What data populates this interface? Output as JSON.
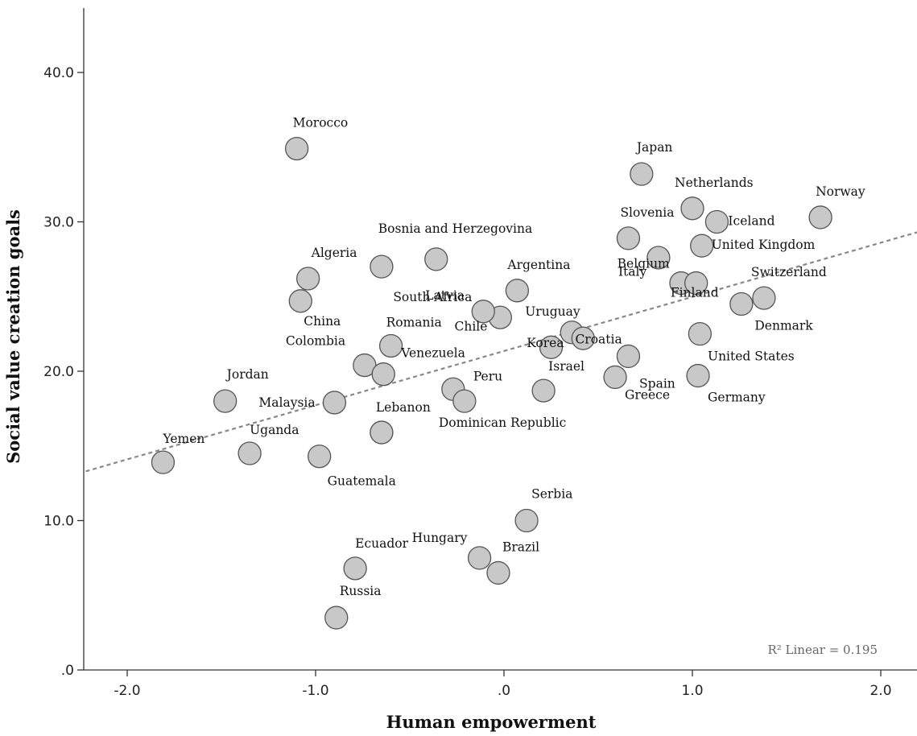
{
  "chart_data": {
    "type": "scatter",
    "xlabel": "Human empowerment",
    "ylabel": "Social value creation goals",
    "xlim": [
      -2.22,
      2.2
    ],
    "ylim": [
      0,
      44
    ],
    "xticks": [
      -2.0,
      -1.0,
      0.0,
      1.0,
      2.0
    ],
    "xtick_labels": [
      "-2.0",
      "-1.0",
      ".0",
      "1.0",
      "2.0"
    ],
    "yticks": [
      0,
      10,
      20,
      30,
      40
    ],
    "ytick_labels": [
      ".0",
      "10.0",
      "20.0",
      "30.0",
      "40.0"
    ],
    "grid": false,
    "marker_color": "#c8c8c8",
    "marker_edge": "#555555",
    "fit_line": {
      "style": "dashed",
      "color": "#888888",
      "x": [
        -2.22,
        2.2
      ],
      "y": [
        13.3,
        29.3
      ]
    },
    "annotation": "R² Linear = 0.195",
    "points": [
      {
        "label": "Morocco",
        "x": -1.1,
        "y": 34.9
      },
      {
        "label": "Japan",
        "x": 0.73,
        "y": 33.2
      },
      {
        "label": "Netherlands",
        "x": 1.0,
        "y": 30.9
      },
      {
        "label": "Norway",
        "x": 1.68,
        "y": 30.3
      },
      {
        "label": "Slovenia",
        "x": 0.66,
        "y": 28.9
      },
      {
        "label": "Iceland",
        "x": 1.13,
        "y": 30.0
      },
      {
        "label": "United Kingdom",
        "x": 1.05,
        "y": 28.4
      },
      {
        "label": "Bosnia and Herzegovina",
        "x": -0.36,
        "y": 27.5
      },
      {
        "label": "Algeria",
        "x": -1.04,
        "y": 26.2
      },
      {
        "label": "Argentina",
        "x": 0.07,
        "y": 25.4
      },
      {
        "label": "Italy",
        "x": 0.94,
        "y": 25.9
      },
      {
        "label": "Switzerland",
        "x": 1.38,
        "y": 24.9
      },
      {
        "label": "South Africa",
        "x": -0.02,
        "y": 23.6
      },
      {
        "label": "Latvia",
        "x": -0.11,
        "y": 24.0
      },
      {
        "label": "Uruguay",
        "x": 0.36,
        "y": 22.6
      },
      {
        "label": "Belgium",
        "x": 1.02,
        "y": 25.9
      },
      {
        "label": "Finland",
        "x": 1.26,
        "y": 24.5
      },
      {
        "label": "Denmark",
        "x": 1.04,
        "y": 22.5
      },
      {
        "label": "China",
        "x": -1.08,
        "y": 24.7
      },
      {
        "label": "Romania",
        "x": -0.6,
        "y": 21.7
      },
      {
        "label": "Chile",
        "x": 0.25,
        "y": 21.6
      },
      {
        "label": "Korea",
        "x": 0.42,
        "y": 22.2
      },
      {
        "label": "Croatia",
        "x": 0.66,
        "y": 21.0
      },
      {
        "label": "Colombia",
        "x": -0.74,
        "y": 20.4
      },
      {
        "label": "Venezuela",
        "x": -0.64,
        "y": 19.8
      },
      {
        "label": "Israel",
        "x": 0.21,
        "y": 18.7
      },
      {
        "label": "Spain",
        "x": 0.59,
        "y": 19.6
      },
      {
        "label": "United States",
        "x": 1.03,
        "y": 19.7
      },
      {
        "label": "Jordan",
        "x": -1.48,
        "y": 18.0
      },
      {
        "label": "Malaysia",
        "x": -0.9,
        "y": 17.9
      },
      {
        "label": "Peru",
        "x": -0.27,
        "y": 18.8
      },
      {
        "label": "Dominican Republic",
        "x": -0.21,
        "y": 18.0
      },
      {
        "label": "Greece",
        "x": -0.65,
        "y": 27.0
      },
      {
        "label": "Germany",
        "x": -0.65,
        "y": 15.9
      },
      {
        "label": "Lebanon",
        "x": -0.65,
        "y": 15.9
      },
      {
        "label": "Yemen",
        "x": -1.81,
        "y": 13.9
      },
      {
        "label": "Uganda",
        "x": -1.35,
        "y": 14.5
      },
      {
        "label": "Guatemala",
        "x": -0.98,
        "y": 14.3
      },
      {
        "label": "Serbia",
        "x": 0.12,
        "y": 10.0
      },
      {
        "label": "Ecuador",
        "x": -0.79,
        "y": 6.8
      },
      {
        "label": "Hungary",
        "x": -0.13,
        "y": 7.5
      },
      {
        "label": "Brazil",
        "x": -0.03,
        "y": 6.5
      },
      {
        "label": "Russia",
        "x": -0.89,
        "y": 3.5
      },
      {
        "label": "",
        "x": 0.82,
        "y": 27.6
      }
    ]
  }
}
